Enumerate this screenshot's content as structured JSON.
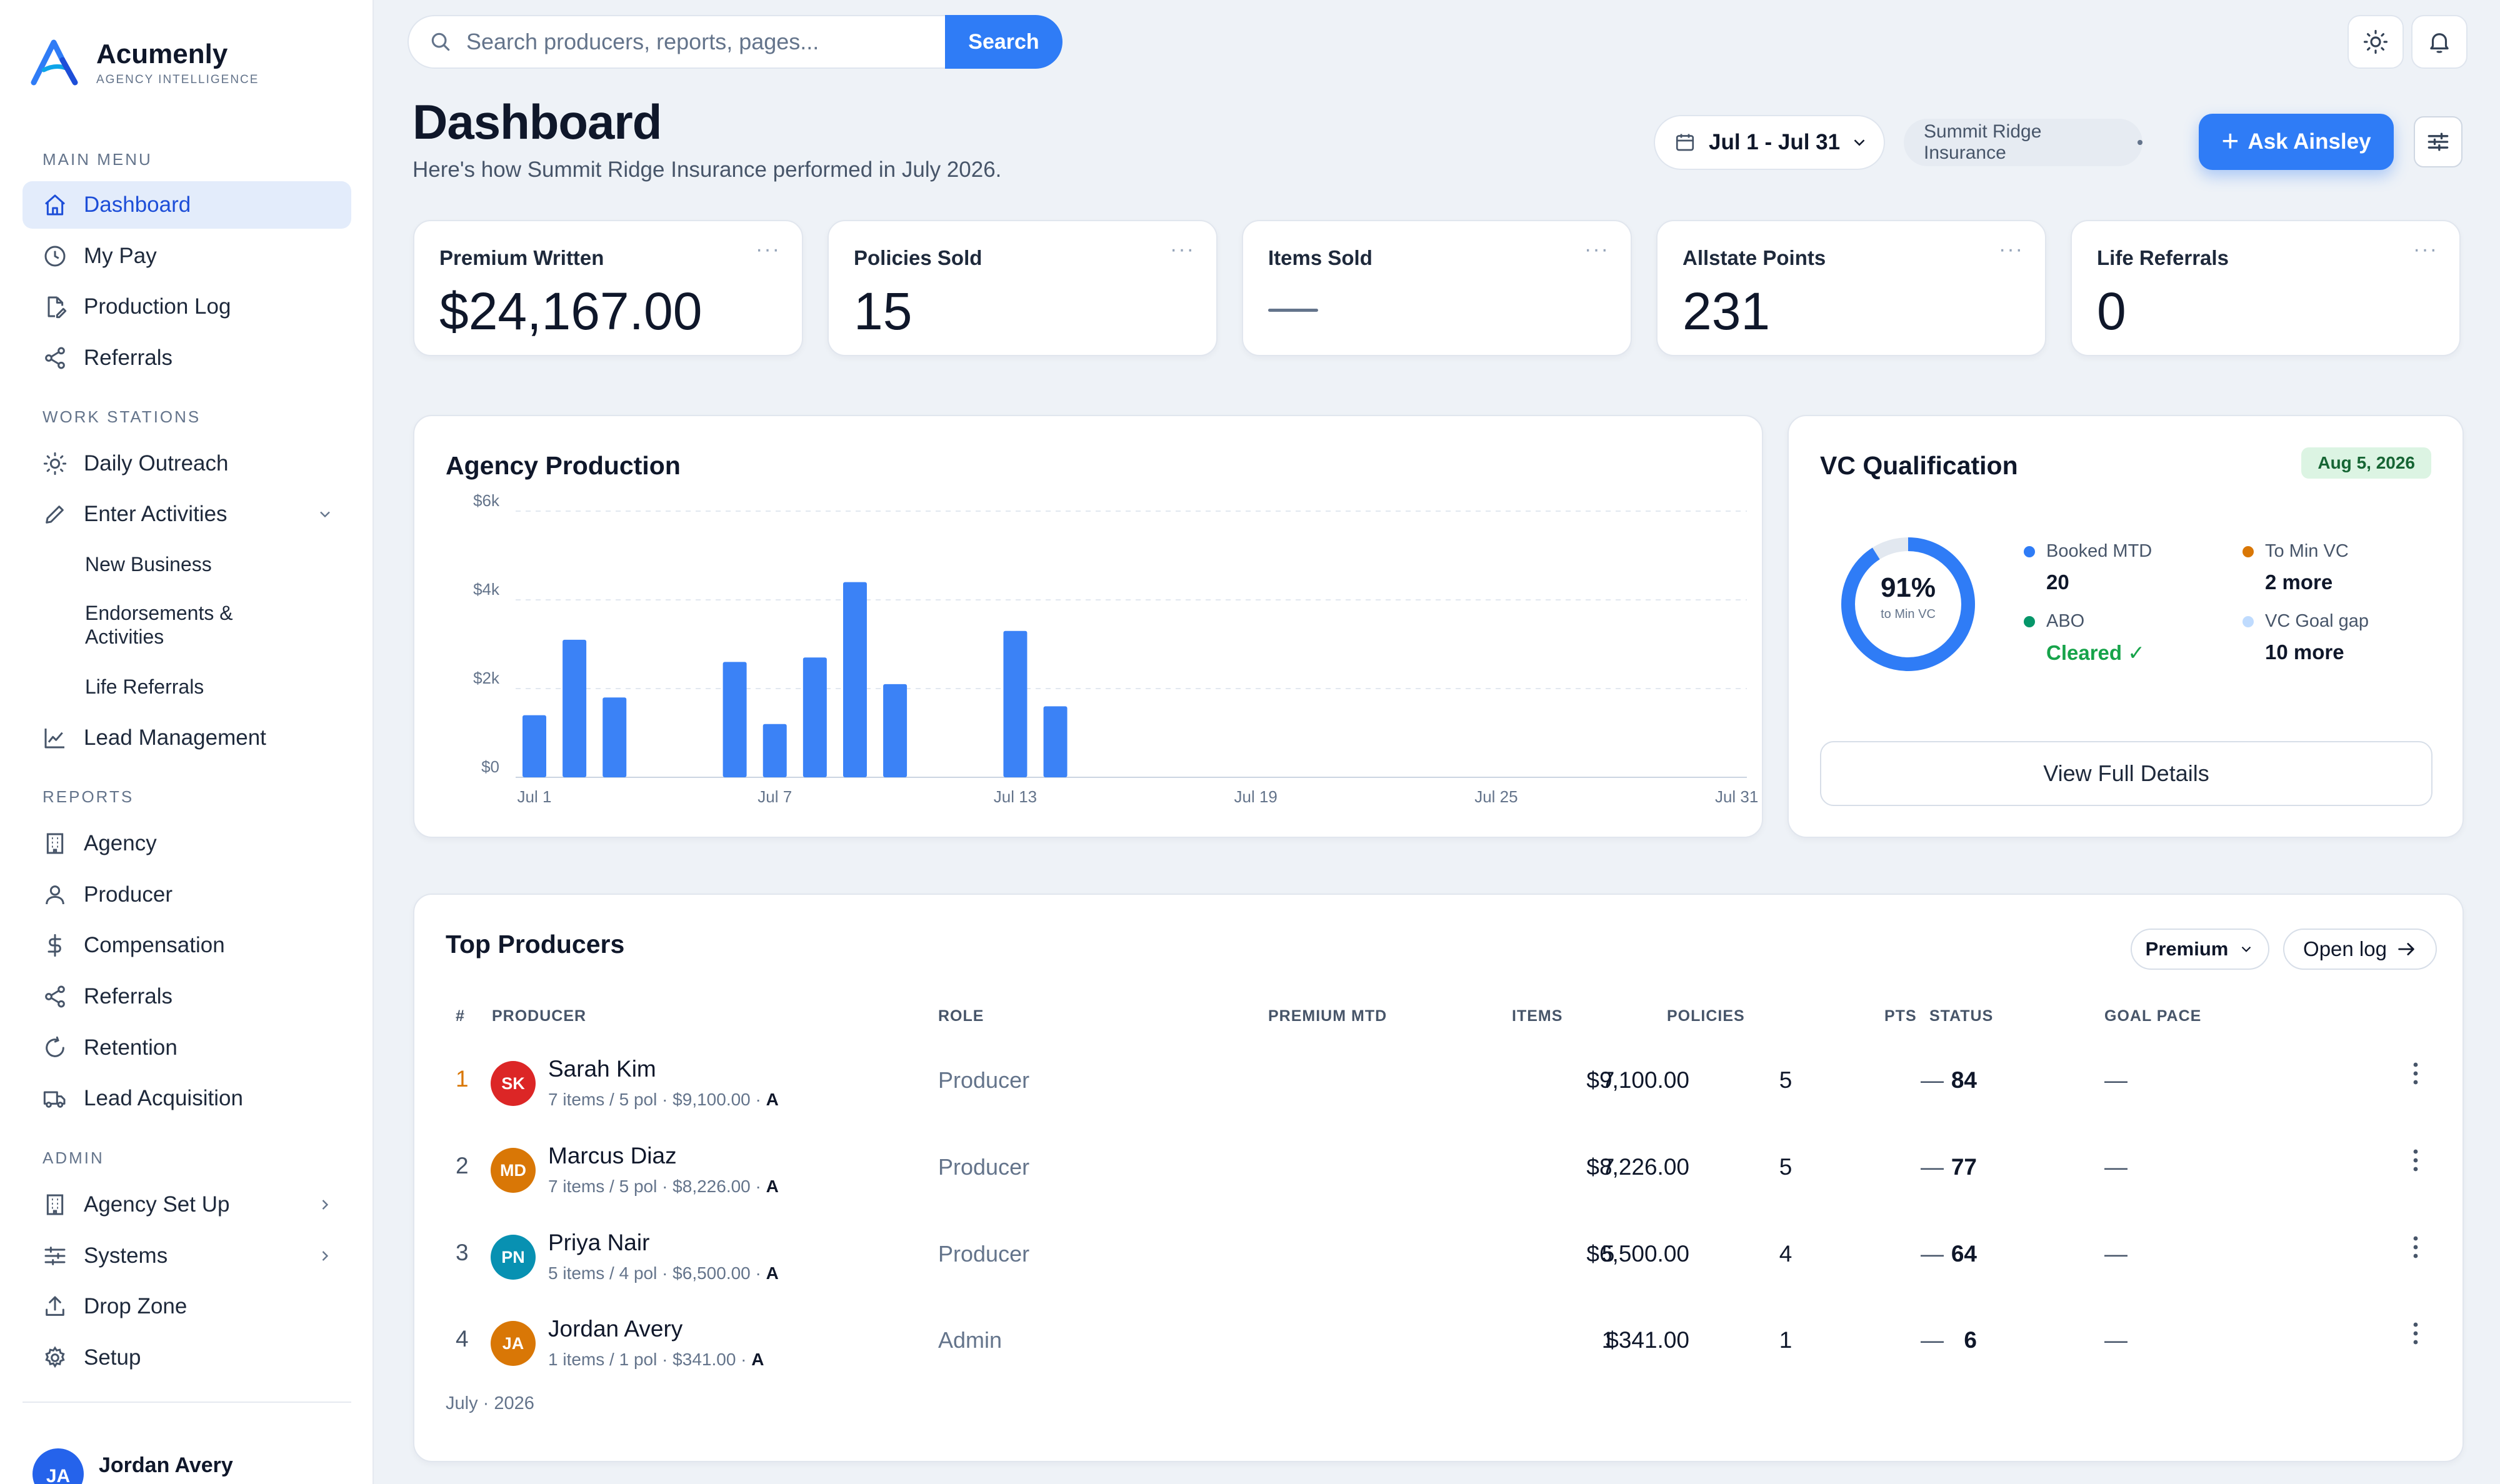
{
  "brand": {
    "name": "Acumenly",
    "tagline": "AGENCY INTELLIGENCE"
  },
  "sidebar": {
    "main_title": "MAIN MENU",
    "main": [
      {
        "label": "Dashboard",
        "icon": "home-icon",
        "active": true
      },
      {
        "label": "My Pay",
        "icon": "clock-icon"
      },
      {
        "label": "Production Log",
        "icon": "file-edit-icon"
      },
      {
        "label": "Referrals",
        "icon": "share-icon"
      }
    ],
    "work_title": "WORK STATIONS",
    "work": [
      {
        "label": "Daily Outreach",
        "icon": "sun-icon"
      },
      {
        "label": "Enter Activities",
        "icon": "pencil-icon"
      }
    ],
    "work_sub": [
      "New Business",
      "Endorsements &",
      "Activities",
      "Life Referrals"
    ],
    "work_after": {
      "label": "Lead Management",
      "icon": "chart-line-icon"
    },
    "reports_title": "REPORTS",
    "reports": [
      {
        "label": "Agency",
        "icon": "building-icon"
      },
      {
        "label": "Producer",
        "icon": "user-icon"
      },
      {
        "label": "Compensation",
        "icon": "dollar-icon"
      },
      {
        "label": "Referrals",
        "icon": "share-icon"
      },
      {
        "label": "Retention",
        "icon": "refresh-icon"
      },
      {
        "label": "Lead Acquisition",
        "icon": "truck-icon"
      }
    ],
    "admin_title": "ADMIN",
    "admin": [
      {
        "label": "Agency Set Up",
        "icon": "building-icon"
      },
      {
        "label": "Systems",
        "icon": "sliders-icon"
      },
      {
        "label": "Drop Zone",
        "icon": "upload-icon"
      },
      {
        "label": "Setup",
        "icon": "gear-icon"
      }
    ],
    "user": {
      "initials": "JA",
      "name": "Jordan Avery"
    }
  },
  "search": {
    "placeholder": "Search producers, reports, pages...",
    "button": "Search"
  },
  "header": {
    "title": "Dashboard",
    "subtitle": "Here's how Summit Ridge Insurance performed in July 2026.",
    "date_range": "Jul 1 - Jul 31",
    "agency": "Summit Ridge Insurance",
    "ask_button": "Ask Ainsley"
  },
  "kpis": [
    {
      "label": "Premium Written",
      "value": "$24,167.00"
    },
    {
      "label": "Policies Sold",
      "value": "15"
    },
    {
      "label": "Items Sold",
      "value": ""
    },
    {
      "label": "Allstate Points",
      "value": "231"
    },
    {
      "label": "Life Referrals",
      "value": "0"
    }
  ],
  "kpi_menu": "···",
  "agency_production": {
    "title": "Agency Production",
    "chart_data": {
      "type": "bar",
      "title": "Agency Production",
      "y_ticks": [
        "$0",
        "$2k",
        "$4k",
        "$6k"
      ],
      "ylim": [
        0,
        6000
      ],
      "x_tick_labels": [
        "Jul 1",
        "Jul 7",
        "Jul 13",
        "Jul 19",
        "Jul 25",
        "Jul 31"
      ],
      "categories": [
        "Jul 1",
        "Jul 2",
        "Jul 3",
        "Jul 4",
        "Jul 5",
        "Jul 6",
        "Jul 7",
        "Jul 8",
        "Jul 9",
        "Jul 10",
        "Jul 11",
        "Jul 12",
        "Jul 13",
        "Jul 14",
        "Jul 15",
        "Jul 16",
        "Jul 17",
        "Jul 18",
        "Jul 19",
        "Jul 20",
        "Jul 21",
        "Jul 22",
        "Jul 23",
        "Jul 24",
        "Jul 25",
        "Jul 26",
        "Jul 27",
        "Jul 28",
        "Jul 29",
        "Jul 30",
        "Jul 31"
      ],
      "values": [
        1400,
        3100,
        1800,
        0,
        0,
        2600,
        1200,
        2700,
        4400,
        2100,
        0,
        0,
        3300,
        1600,
        0,
        0,
        0,
        0,
        0,
        0,
        0,
        0,
        0,
        0,
        0,
        0,
        0,
        0,
        0,
        0,
        0
      ],
      "color": "#3b82f6",
      "grid": true
    }
  },
  "vc": {
    "title": "VC Qualification",
    "badge": "Aug 5, 2026",
    "percent": "91%",
    "percent_value": 91,
    "percent_label": "to Min VC",
    "legend": [
      {
        "label": "Booked MTD",
        "value": "20",
        "color": "#2f7cf6"
      },
      {
        "label": "To Min VC",
        "value": "2 more",
        "color": "#d97706"
      },
      {
        "label": "ABO",
        "value": "Cleared ✓",
        "color": "#059669"
      },
      {
        "label": "VC Goal gap",
        "value": "10 more",
        "color": "#bfdbfe"
      }
    ],
    "button": "View Full Details"
  },
  "top_producers": {
    "title": "Top Producers",
    "sort": "Premium",
    "open_log": "Open log",
    "headers": {
      "rank": "#",
      "producer": "PRODUCER",
      "role": "ROLE",
      "premium": "PREMIUM MTD",
      "items": "ITEMS",
      "policies": "POLICIES",
      "pts": "PTS",
      "status": "STATUS",
      "goal": "GOAL PACE"
    },
    "rows": [
      {
        "rank": "1",
        "initials": "SK",
        "color": "#dc2626",
        "name": "Sarah Kim",
        "meta": "7 items / 5 pol · $9,100.00 · ",
        "badge": "A",
        "role": "Producer",
        "premium": "$9,100.00",
        "items": "7",
        "policies": "5",
        "pts": "84",
        "status": "—",
        "goal": "—"
      },
      {
        "rank": "2",
        "initials": "MD",
        "color": "#d97706",
        "name": "Marcus Diaz",
        "meta": "7 items / 5 pol · $8,226.00 · ",
        "badge": "A",
        "role": "Producer",
        "premium": "$8,226.00",
        "items": "7",
        "policies": "5",
        "pts": "77",
        "status": "—",
        "goal": "—"
      },
      {
        "rank": "3",
        "initials": "PN",
        "color": "#0891b2",
        "name": "Priya Nair",
        "meta": "5 items / 4 pol · $6,500.00 · ",
        "badge": "A",
        "role": "Producer",
        "premium": "$6,500.00",
        "items": "5",
        "policies": "4",
        "pts": "64",
        "status": "—",
        "goal": "—"
      },
      {
        "rank": "4",
        "initials": "JA",
        "color": "#d97706",
        "name": "Jordan Avery",
        "meta": "1 items / 1 pol · $341.00 · ",
        "badge": "A",
        "role": "Admin",
        "premium": "$341.00",
        "items": "1",
        "policies": "1",
        "pts": "6",
        "status": "—",
        "goal": "—"
      }
    ],
    "footer": "July · 2026"
  }
}
